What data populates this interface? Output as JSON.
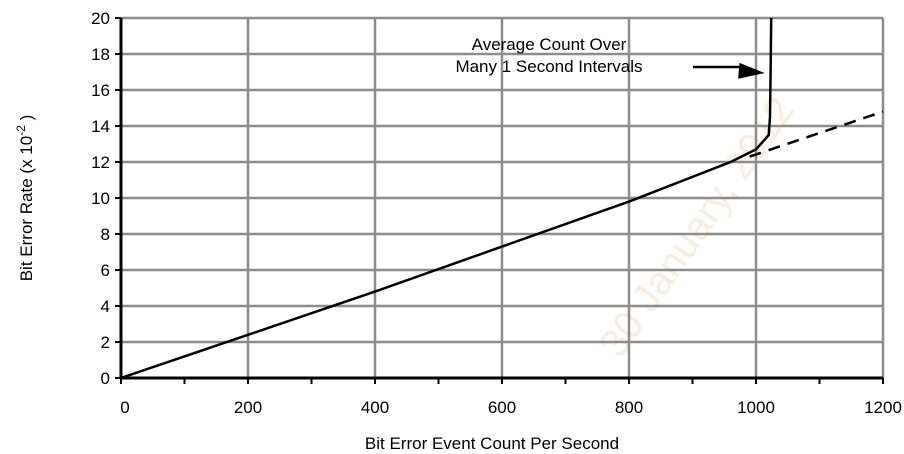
{
  "chart_data": {
    "type": "line",
    "xlabel": "Bit Error Event Count Per Second",
    "ylabel": "Bit Error Rate (x 10",
    "ylabel_exp": "-2",
    "ylabel_close": " )",
    "xlim": [
      0,
      1200
    ],
    "ylim": [
      0,
      20
    ],
    "x_ticks": [
      0,
      200,
      400,
      600,
      800,
      1000,
      1200
    ],
    "y_ticks": [
      0,
      2,
      4,
      6,
      8,
      10,
      12,
      14,
      16,
      18,
      20
    ],
    "grid": true,
    "series": [
      {
        "style": "solid",
        "points": [
          [
            0,
            0
          ],
          [
            200,
            2.4
          ],
          [
            400,
            4.8
          ],
          [
            600,
            7.3
          ],
          [
            800,
            9.8
          ],
          [
            960,
            12.0
          ],
          [
            1000,
            12.7
          ],
          [
            1020,
            13.5
          ],
          [
            1022,
            14.5
          ],
          [
            1023,
            17.0
          ],
          [
            1024,
            20.0
          ]
        ]
      },
      {
        "style": "dashed",
        "points": [
          [
            990,
            12.3
          ],
          [
            1200,
            14.8
          ]
        ]
      }
    ],
    "annotations": [
      {
        "text_line1": "Average Count Over",
        "text_line2": "Many 1 Second Intervals",
        "arrow_to": [
          1020,
          16.5
        ]
      }
    ]
  },
  "watermark": "30 January, 2012"
}
